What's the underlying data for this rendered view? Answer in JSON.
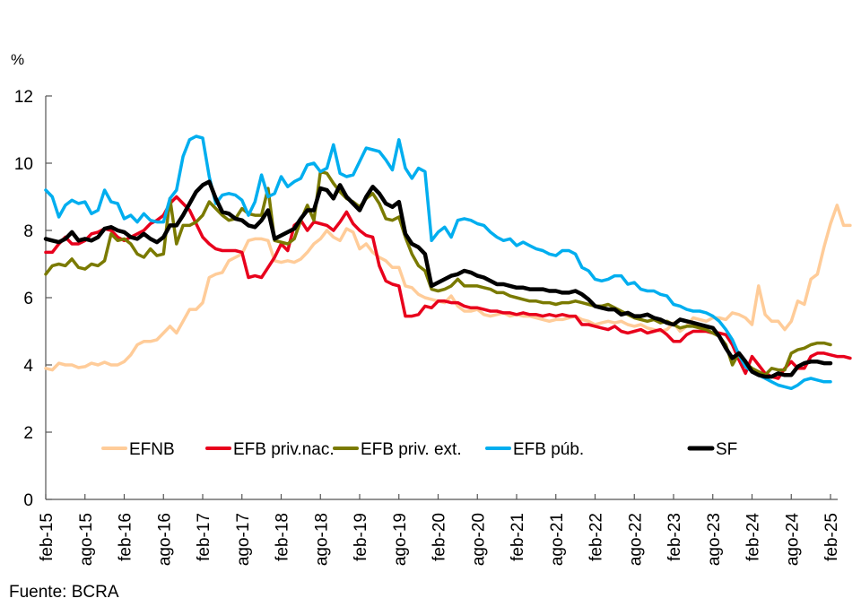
{
  "chart_data": {
    "type": "line",
    "title": "",
    "unit_label": "%",
    "xlabel": "",
    "ylabel": "%",
    "ylim": [
      0,
      12
    ],
    "yticks": [
      0,
      2,
      4,
      6,
      8,
      10,
      12
    ],
    "x_start": "feb-15",
    "x_end": "feb-25",
    "frequency": "monthly",
    "xtick_labels": [
      "feb-15",
      "ago-15",
      "feb-16",
      "ago-16",
      "feb-17",
      "ago-17",
      "feb-18",
      "ago-18",
      "feb-19",
      "ago-19",
      "feb-20",
      "ago-20",
      "feb-21",
      "ago-21",
      "feb-22",
      "ago-22",
      "feb-23",
      "ago-23",
      "feb-24",
      "ago-24",
      "feb-25"
    ],
    "legend_position": "bottom-inside",
    "grid": false,
    "source": "Fuente: BCRA",
    "series": [
      {
        "name": "EFNB",
        "color": "#FFCC99",
        "values": [
          3.9,
          3.85,
          4.05,
          4.0,
          4.0,
          3.92,
          3.95,
          4.05,
          4.0,
          4.08,
          4.0,
          4.0,
          4.1,
          4.3,
          4.6,
          4.7,
          4.7,
          4.75,
          4.95,
          5.15,
          4.95,
          5.3,
          5.65,
          5.65,
          5.85,
          6.6,
          6.7,
          6.75,
          7.1,
          7.2,
          7.3,
          7.7,
          7.75,
          7.75,
          7.7,
          7.1,
          7.05,
          7.1,
          7.05,
          7.15,
          7.35,
          7.6,
          7.75,
          8.0,
          7.8,
          7.7,
          8.05,
          7.95,
          7.45,
          7.6,
          7.35,
          7.2,
          7.1,
          6.9,
          6.9,
          6.35,
          6.3,
          6.1,
          6.0,
          5.95,
          5.9,
          5.85,
          6.05,
          5.75,
          5.6,
          5.6,
          5.65,
          5.5,
          5.45,
          5.5,
          5.55,
          5.45,
          5.5,
          5.45,
          5.45,
          5.4,
          5.35,
          5.3,
          5.35,
          5.35,
          5.4,
          5.45,
          5.35,
          5.3,
          5.2,
          5.25,
          5.3,
          5.25,
          5.3,
          5.2,
          5.15,
          5.2,
          5.1,
          5.05,
          5.0,
          5.05,
          5.25,
          5.0,
          5.15,
          5.4,
          5.35,
          5.3,
          5.4,
          5.4,
          5.35,
          5.55,
          5.5,
          5.4,
          5.2,
          6.35,
          5.5,
          5.3,
          5.3,
          5.05,
          5.3,
          5.9,
          5.8,
          6.55,
          6.7,
          7.5,
          8.2,
          8.75,
          8.15,
          8.15
        ],
        "style_note": "light peach line"
      },
      {
        "name": "EFB priv.nac.",
        "color": "#E8001C",
        "values": [
          7.35,
          7.35,
          7.6,
          7.8,
          7.6,
          7.6,
          7.7,
          7.9,
          7.95,
          8.05,
          8.0,
          7.8,
          7.7,
          7.8,
          7.9,
          8.0,
          8.2,
          8.3,
          8.45,
          8.8,
          9.0,
          8.8,
          8.6,
          8.2,
          7.8,
          7.6,
          7.45,
          7.4,
          7.4,
          7.4,
          7.35,
          6.6,
          6.65,
          6.6,
          6.9,
          7.2,
          7.6,
          7.4,
          8.15,
          8.3,
          8.0,
          8.25,
          8.2,
          8.15,
          8.0,
          8.25,
          8.55,
          8.2,
          8.0,
          7.85,
          7.8,
          6.95,
          6.5,
          6.4,
          6.35,
          5.45,
          5.45,
          5.5,
          5.75,
          5.7,
          5.9,
          5.9,
          5.85,
          5.85,
          5.75,
          5.7,
          5.7,
          5.65,
          5.6,
          5.6,
          5.55,
          5.55,
          5.5,
          5.55,
          5.5,
          5.5,
          5.45,
          5.5,
          5.45,
          5.5,
          5.45,
          5.45,
          5.2,
          5.2,
          5.15,
          5.1,
          5.05,
          5.15,
          5.0,
          4.95,
          5.0,
          5.05,
          4.95,
          5.0,
          5.05,
          4.9,
          4.7,
          4.7,
          4.9,
          5.0,
          5.0,
          5.0,
          4.95,
          4.95,
          4.9,
          4.6,
          4.15,
          3.75,
          4.25,
          4.0,
          3.75,
          3.65,
          3.6,
          3.9,
          4.1,
          3.9,
          3.9,
          4.25,
          4.35,
          4.35,
          4.3,
          4.25,
          4.25,
          4.2
        ],
        "style_note": "red line"
      },
      {
        "name": "EFB priv. ext.",
        "color": "#7A7A00",
        "values": [
          6.7,
          6.95,
          7.0,
          6.95,
          7.15,
          6.9,
          6.85,
          7.0,
          6.95,
          7.1,
          7.9,
          7.7,
          7.75,
          7.6,
          7.3,
          7.2,
          7.45,
          7.25,
          7.3,
          8.95,
          7.6,
          8.15,
          8.15,
          8.25,
          8.45,
          8.85,
          8.65,
          8.45,
          8.3,
          8.35,
          8.65,
          8.5,
          8.45,
          8.45,
          9.25,
          7.7,
          7.65,
          7.6,
          7.75,
          8.3,
          8.75,
          8.3,
          9.75,
          9.7,
          9.4,
          9.15,
          8.95,
          8.85,
          8.7,
          8.95,
          9.1,
          8.8,
          8.35,
          8.3,
          8.4,
          7.8,
          7.3,
          6.95,
          6.8,
          6.25,
          6.2,
          6.25,
          6.35,
          6.55,
          6.35,
          6.35,
          6.35,
          6.3,
          6.25,
          6.15,
          6.15,
          6.05,
          6.0,
          5.95,
          5.9,
          5.9,
          5.85,
          5.85,
          5.8,
          5.85,
          5.85,
          5.9,
          5.85,
          5.8,
          5.75,
          5.75,
          5.8,
          5.7,
          5.6,
          5.5,
          5.4,
          5.35,
          5.3,
          5.35,
          5.25,
          5.3,
          5.2,
          5.1,
          5.15,
          5.15,
          5.1,
          5.05,
          4.95,
          4.85,
          4.6,
          4.0,
          4.35,
          4.05,
          3.9,
          3.8,
          3.7,
          3.9,
          3.85,
          3.85,
          4.35,
          4.45,
          4.5,
          4.6,
          4.65,
          4.65,
          4.6
        ],
        "style_note": "olive line"
      },
      {
        "name": "EFB púb.",
        "color": "#00AEEF",
        "values": [
          9.2,
          9.0,
          8.4,
          8.75,
          8.9,
          8.8,
          8.85,
          8.5,
          8.6,
          9.2,
          8.85,
          8.8,
          8.35,
          8.45,
          8.25,
          8.5,
          8.3,
          8.25,
          8.25,
          8.95,
          9.2,
          10.2,
          10.7,
          10.8,
          10.75,
          9.6,
          8.8,
          9.05,
          9.1,
          9.05,
          8.9,
          8.45,
          8.85,
          9.65,
          9.0,
          9.1,
          9.6,
          9.3,
          9.45,
          9.55,
          9.95,
          10.0,
          9.75,
          9.85,
          10.55,
          9.7,
          9.6,
          9.65,
          10.05,
          10.45,
          10.4,
          10.35,
          10.1,
          9.8,
          10.7,
          9.85,
          9.55,
          9.85,
          9.75,
          7.7,
          7.95,
          8.1,
          7.8,
          8.3,
          8.35,
          8.3,
          8.2,
          8.15,
          7.95,
          7.8,
          7.7,
          7.75,
          7.55,
          7.65,
          7.55,
          7.45,
          7.4,
          7.3,
          7.25,
          7.4,
          7.4,
          7.3,
          6.9,
          6.8,
          6.55,
          6.5,
          6.55,
          6.65,
          6.65,
          6.4,
          6.45,
          6.25,
          6.2,
          6.2,
          6.1,
          6.05,
          5.8,
          5.75,
          5.65,
          5.6,
          5.6,
          5.55,
          5.45,
          5.3,
          5.05,
          4.75,
          4.3,
          3.95,
          3.8,
          3.7,
          3.6,
          3.5,
          3.4,
          3.35,
          3.3,
          3.4,
          3.55,
          3.6,
          3.55,
          3.5,
          3.5
        ],
        "style_note": "cyan line"
      },
      {
        "name": "SF",
        "color": "#000000",
        "values": [
          7.75,
          7.7,
          7.65,
          7.75,
          7.95,
          7.7,
          7.75,
          7.7,
          7.8,
          8.05,
          8.1,
          8.0,
          7.95,
          7.8,
          7.75,
          7.9,
          7.75,
          7.65,
          7.8,
          8.15,
          8.15,
          8.45,
          8.8,
          9.15,
          9.35,
          9.45,
          8.95,
          8.55,
          8.5,
          8.35,
          8.3,
          8.15,
          8.1,
          8.3,
          8.6,
          7.75,
          7.85,
          7.95,
          8.05,
          8.35,
          8.6,
          8.6,
          9.25,
          9.2,
          8.95,
          9.35,
          9.0,
          8.8,
          8.6,
          9.0,
          9.3,
          9.1,
          8.8,
          8.7,
          8.85,
          7.9,
          7.6,
          7.5,
          7.3,
          6.35,
          6.45,
          6.55,
          6.65,
          6.7,
          6.8,
          6.75,
          6.65,
          6.6,
          6.5,
          6.4,
          6.4,
          6.35,
          6.3,
          6.3,
          6.25,
          6.25,
          6.25,
          6.2,
          6.2,
          6.15,
          6.15,
          6.2,
          6.1,
          5.95,
          5.75,
          5.7,
          5.65,
          5.65,
          5.5,
          5.55,
          5.45,
          5.45,
          5.5,
          5.4,
          5.35,
          5.25,
          5.2,
          5.35,
          5.3,
          5.25,
          5.2,
          5.15,
          5.1,
          4.85,
          4.5,
          4.2,
          4.35,
          4.1,
          3.8,
          3.7,
          3.65,
          3.65,
          3.75,
          3.7,
          3.7,
          3.95,
          4.05,
          4.1,
          4.1,
          4.05,
          4.05
        ],
        "style_note": "thick black line"
      }
    ]
  }
}
